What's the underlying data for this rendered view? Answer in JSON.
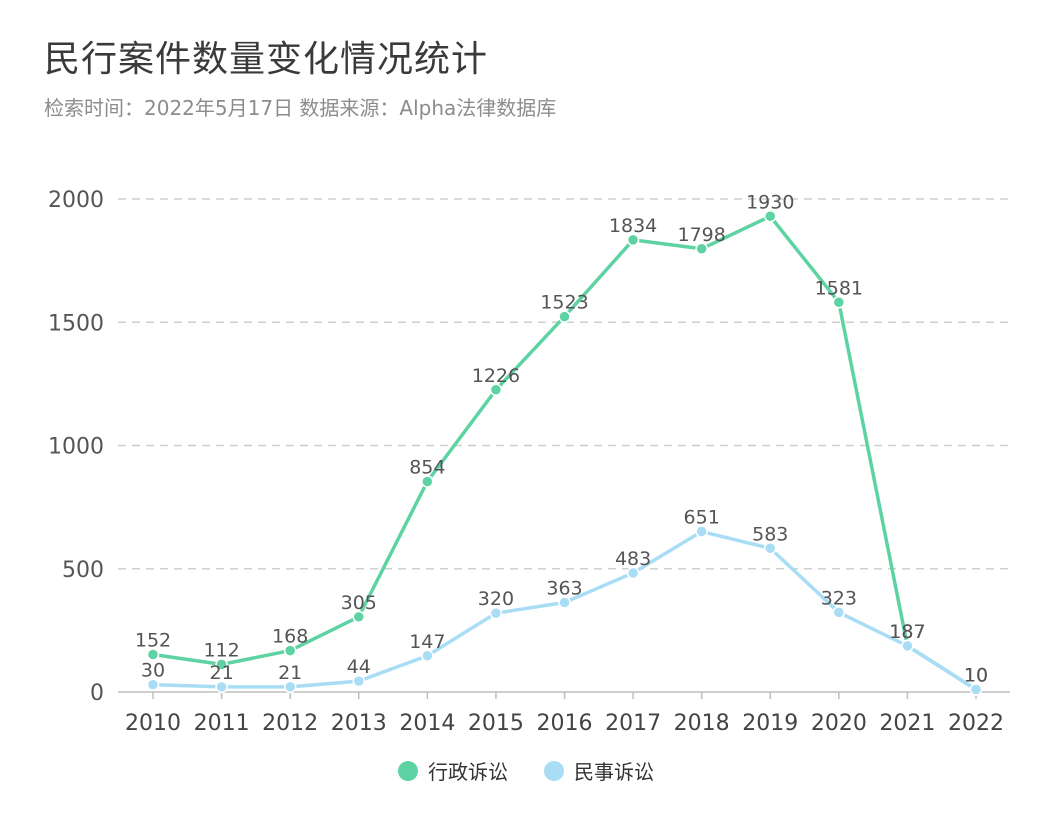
{
  "title": "民行案件数量变化情况统计",
  "subtitle": "检索时间：2022年5月17日 数据来源：Alpha法律数据库",
  "chart_data": {
    "type": "line",
    "title": "民行案件数量变化情况统计",
    "categories": [
      "2010",
      "2011",
      "2012",
      "2013",
      "2014",
      "2015",
      "2016",
      "2017",
      "2018",
      "2019",
      "2020",
      "2021",
      "2022"
    ],
    "series": [
      {
        "name": "行政诉讼",
        "color": "#5dd3a3",
        "values": [
          152,
          112,
          168,
          305,
          854,
          1226,
          1523,
          1834,
          1798,
          1930,
          1581,
          187,
          10
        ]
      },
      {
        "name": "民事诉讼",
        "color": "#a8ddf5",
        "values": [
          30,
          21,
          21,
          44,
          147,
          320,
          363,
          483,
          651,
          583,
          323,
          187,
          10
        ]
      }
    ],
    "ylim": [
      0,
      2000
    ],
    "yticks": [
      0,
      500,
      1000,
      1500,
      2000
    ],
    "grid": true,
    "legend_position": "bottom-center",
    "xlabel": "",
    "ylabel": ""
  }
}
